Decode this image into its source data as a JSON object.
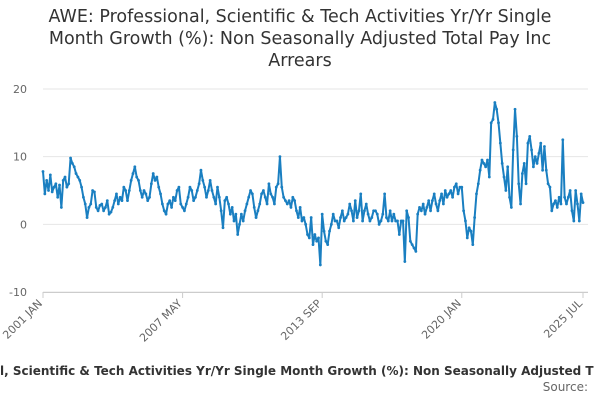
{
  "chart_data": {
    "type": "line",
    "title": "AWE: Professional, Scientific & Tech Activities Yr/Yr Single Month Growth (%): Non Seasonally Adjusted Total Pay Inc Arrears",
    "footer": "l, Scientific & Tech Activities Yr/Yr Single Month Growth (%): Non Seasonally Adjusted T",
    "source": "Source:",
    "color": "#1a7fc1",
    "grid": true,
    "ylim": [
      -10,
      20
    ],
    "yticks": [
      -10,
      0,
      10,
      20
    ],
    "categories": [
      "2001 JAN",
      null,
      null,
      null,
      null,
      null,
      null,
      null,
      null,
      null,
      null,
      null,
      null,
      null,
      null,
      null,
      null,
      null,
      null,
      null,
      null,
      null,
      null,
      null,
      null,
      null,
      null,
      null,
      null,
      null,
      null,
      null,
      null,
      null,
      null,
      null,
      null,
      null,
      null,
      null,
      null,
      null,
      null,
      null,
      null,
      null,
      null,
      null,
      null,
      null,
      null,
      null,
      null,
      null,
      null,
      null,
      null,
      null,
      null,
      null,
      null,
      null,
      null,
      null,
      null,
      null,
      null,
      null,
      null,
      null,
      null,
      null,
      null,
      null,
      null,
      null,
      "2007 MAY",
      null,
      null,
      null,
      null,
      null,
      null,
      null,
      null,
      null,
      null,
      null,
      null,
      null,
      null,
      null,
      null,
      null,
      null,
      null,
      null,
      null,
      null,
      null,
      null,
      null,
      null,
      null,
      null,
      null,
      null,
      null,
      null,
      null,
      null,
      null,
      null,
      null,
      null,
      null,
      null,
      null,
      null,
      null,
      null,
      null,
      null,
      null,
      null,
      null,
      null,
      null,
      null,
      null,
      null,
      null,
      null,
      null,
      null,
      null,
      null,
      null,
      null,
      null,
      null,
      null,
      null,
      null,
      null,
      null,
      null,
      null,
      null,
      null,
      null,
      null,
      "2013 SEP",
      null,
      null,
      null,
      null,
      null,
      null,
      null,
      null,
      null,
      null,
      null,
      null,
      null,
      null,
      null,
      null,
      null,
      null,
      null,
      null,
      null,
      null,
      null,
      null,
      null,
      null,
      null,
      null,
      null,
      null,
      null,
      null,
      null,
      null,
      null,
      null,
      null,
      null,
      null,
      null,
      null,
      null,
      null,
      null,
      null,
      null,
      null,
      null,
      null,
      null,
      null,
      null,
      null,
      null,
      null,
      null,
      null,
      null,
      null,
      null,
      null,
      null,
      null,
      null,
      null,
      null,
      null,
      null,
      null,
      null,
      null,
      null,
      null,
      null,
      null,
      "2020 JAN",
      null,
      null,
      null,
      null,
      null,
      null,
      null,
      null,
      null,
      null,
      null,
      null,
      null,
      null,
      null,
      null,
      null,
      null,
      null,
      null,
      null,
      null,
      null,
      null,
      null,
      null,
      null,
      null,
      null,
      null,
      null,
      null,
      null,
      null,
      null,
      null,
      null,
      null,
      null,
      null,
      null,
      null,
      null,
      null,
      null,
      null,
      null,
      null,
      null,
      null,
      null,
      null,
      null,
      null,
      null,
      null,
      null,
      null,
      null,
      null,
      null,
      null,
      null,
      null,
      null,
      "2025 JUL"
    ],
    "values": [
      7.8,
      4.5,
      6.5,
      5,
      7.3,
      4.8,
      5.5,
      6,
      4,
      5.8,
      2.5,
      6.5,
      7,
      5.5,
      6,
      9.8,
      9,
      8.5,
      7.5,
      7,
      6.5,
      5.5,
      4,
      3,
      1,
      2.5,
      3,
      5,
      4.8,
      2.5,
      2,
      2.8,
      3,
      2,
      2.5,
      3.5,
      1.5,
      1.8,
      2.5,
      3.5,
      4.5,
      3,
      4,
      3.5,
      5.5,
      5,
      3.5,
      5,
      6.5,
      7.5,
      8.5,
      7,
      6.5,
      5,
      4,
      5,
      4.5,
      3.5,
      4,
      6,
      7.5,
      6.5,
      7,
      5.5,
      4.5,
      3,
      2,
      1.5,
      3,
      3.5,
      2.5,
      4,
      3.5,
      5,
      5.5,
      3,
      2.5,
      2,
      3,
      4,
      5.5,
      5,
      3.5,
      4,
      5,
      6,
      8,
      6.5,
      5.5,
      4,
      5,
      6.5,
      5,
      4,
      3,
      5.5,
      4,
      2,
      -0.5,
      3.5,
      4,
      3,
      1.5,
      2.5,
      0.5,
      1.5,
      -1.5,
      0,
      1.5,
      0.5,
      2,
      3,
      4,
      5,
      4.5,
      2.5,
      1,
      2,
      3,
      4.5,
      5,
      4,
      3,
      6,
      4.5,
      4,
      3,
      5.5,
      6,
      10,
      5.5,
      4,
      3.5,
      3,
      3.5,
      2.5,
      4,
      3.5,
      2,
      1,
      2.5,
      0.5,
      1,
      0,
      -1.5,
      -2,
      1,
      -3,
      -1.5,
      -2.5,
      -2,
      -6,
      1.5,
      -1,
      -2.5,
      -3,
      -1,
      0,
      1.5,
      0.5,
      0.5,
      -0.5,
      1,
      2,
      0.5,
      1,
      1.5,
      3,
      2,
      0.5,
      3.5,
      1,
      2,
      4.5,
      0.5,
      2,
      3,
      1.5,
      0.5,
      1,
      2,
      2,
      1.5,
      0,
      0.5,
      1.5,
      4.5,
      1,
      0.5,
      2,
      0.5,
      1.5,
      0.5,
      0.5,
      -1.5,
      0.5,
      0.5,
      -5.5,
      2,
      1,
      -2.5,
      -3,
      -3.5,
      -4,
      1.5,
      2.5,
      2,
      3,
      1.5,
      2.5,
      3.5,
      2,
      3.5,
      4.5,
      3,
      2,
      3.5,
      4.5,
      3,
      5,
      4,
      4.5,
      5,
      4,
      5.5,
      6,
      4.5,
      5.5,
      5.5,
      2,
      0.5,
      -2,
      -0.5,
      -1,
      -3,
      1,
      4.5,
      6,
      8,
      9.5,
      9,
      8.5,
      9.5,
      7,
      15,
      15.5,
      18,
      17,
      15,
      12,
      9,
      7,
      5,
      8.5,
      4,
      2.5,
      11,
      17,
      13,
      6,
      3,
      7.5,
      9,
      6,
      12,
      13,
      11,
      8.5,
      10,
      9,
      10.5,
      12,
      8,
      11.5,
      8,
      6,
      5.5,
      2,
      3,
      3.5,
      2.5,
      4,
      3,
      12.5,
      4,
      3,
      4,
      5,
      2,
      0.5,
      5,
      3,
      0.5,
      4.5,
      3.2
    ]
  }
}
